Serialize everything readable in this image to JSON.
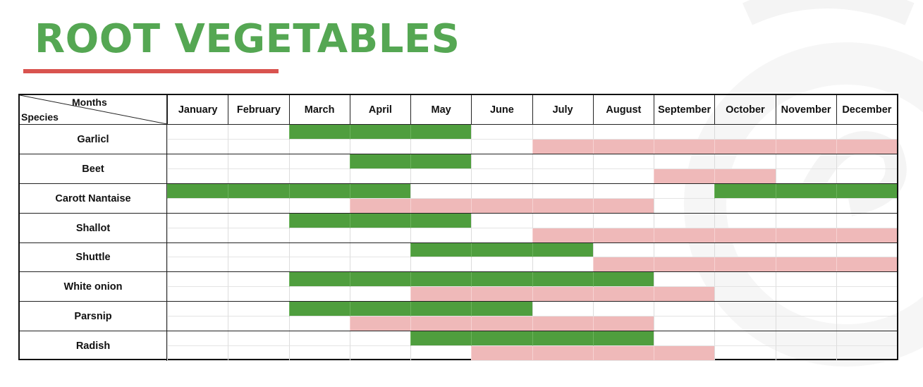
{
  "title": "ROOT VEGETABLES",
  "corner": {
    "months_label": "Months",
    "species_label": "Species"
  },
  "months": [
    "January",
    "February",
    "March",
    "April",
    "May",
    "June",
    "July",
    "August",
    "September",
    "October",
    "November",
    "December"
  ],
  "colors": {
    "title": "#55a753",
    "underline": "#d9534f",
    "sowing_period": "#4f9e3e",
    "harvest_period": "#efb9b9"
  },
  "species": [
    {
      "name": "Garlicl",
      "sowing_months": [
        3,
        4,
        5
      ],
      "harvest_months": [
        7,
        8,
        9,
        10,
        11,
        12
      ]
    },
    {
      "name": "Beet",
      "sowing_months": [
        4,
        5
      ],
      "harvest_months": [
        9,
        10
      ]
    },
    {
      "name": "Carott Nantaise",
      "sowing_months": [
        1,
        2,
        3,
        4,
        10,
        11,
        12
      ],
      "harvest_months": [
        4,
        5,
        6,
        7,
        8
      ]
    },
    {
      "name": "Shallot",
      "sowing_months": [
        3,
        4,
        5
      ],
      "harvest_months": [
        7,
        8,
        9,
        10,
        11,
        12
      ]
    },
    {
      "name": "Shuttle",
      "sowing_months": [
        5,
        6,
        7
      ],
      "harvest_months": [
        8,
        9,
        10,
        11,
        12
      ]
    },
    {
      "name": "White onion",
      "sowing_months": [
        3,
        4,
        5,
        6,
        7,
        8
      ],
      "harvest_months": [
        5,
        6,
        7,
        8,
        9
      ]
    },
    {
      "name": "Parsnip",
      "sowing_months": [
        3,
        4,
        5,
        6
      ],
      "harvest_months": [
        4,
        5,
        6,
        7,
        8
      ]
    },
    {
      "name": "Radish",
      "sowing_months": [
        5,
        6,
        7,
        8
      ],
      "harvest_months": [
        6,
        7,
        8,
        9
      ]
    }
  ]
}
